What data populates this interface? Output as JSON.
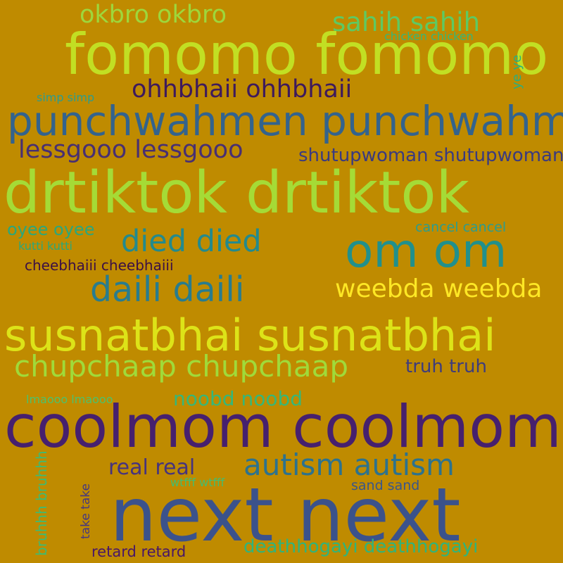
{
  "background": "#bf8b00",
  "words": [
    {
      "text": "okbro okbro",
      "color": "#9ed73b"
    },
    {
      "text": "sahih sahih",
      "color": "#5ec962"
    },
    {
      "text": "chicken chicken",
      "color": "#35b779"
    },
    {
      "text": "fomomo fomomo",
      "color": "#c2df23"
    },
    {
      "text": "ye ye",
      "color": "#29af7f"
    },
    {
      "text": "simp simp",
      "color": "#2a9d8f"
    },
    {
      "text": "ohhbhaii ohhbhaii",
      "color": "#3e1a5c"
    },
    {
      "text": "punchwahmen punchwahmen",
      "color": "#33638d"
    },
    {
      "text": "lessgooo lessgooo",
      "color": "#482f72"
    },
    {
      "text": "shutupwoman shutupwoman",
      "color": "#3a3a80"
    },
    {
      "text": "drtiktok drtiktok",
      "color": "#a5db36"
    },
    {
      "text": "oyee oyee",
      "color": "#2aa77c"
    },
    {
      "text": "died died",
      "color": "#238a8d"
    },
    {
      "text": "om om",
      "color": "#21908c"
    },
    {
      "text": "cancel cancel",
      "color": "#2a9d8f"
    },
    {
      "text": "kutti kutti",
      "color": "#2aa77c"
    },
    {
      "text": "cheebhaiii cheebhaiii",
      "color": "#3b0f45"
    },
    {
      "text": "daili daili",
      "color": "#287c8e"
    },
    {
      "text": "weebda weebda",
      "color": "#fde725"
    },
    {
      "text": "susnatbhai susnatbhai",
      "color": "#dde318"
    },
    {
      "text": "chupchaap chupchaap",
      "color": "#a0da39"
    },
    {
      "text": "truh truh",
      "color": "#3e3c7d"
    },
    {
      "text": "lmaooo lmaooo",
      "color": "#4cc26c"
    },
    {
      "text": "noobd noobd",
      "color": "#35b779"
    },
    {
      "text": "coolmom coolmom",
      "color": "#46206e"
    },
    {
      "text": "real real",
      "color": "#46337e"
    },
    {
      "text": "autism autism",
      "color": "#2c728e"
    },
    {
      "text": "wtfff wtfff",
      "color": "#42be71"
    },
    {
      "text": "sand sand",
      "color": "#39568c"
    },
    {
      "text": "bruhhh bruhhh",
      "color": "#3cbb75"
    },
    {
      "text": "take take",
      "color": "#453781"
    },
    {
      "text": "next next",
      "color": "#3b528b"
    },
    {
      "text": "retard retard",
      "color": "#481668"
    },
    {
      "text": "deathhogayi deathhogayi",
      "color": "#2fb47c"
    }
  ]
}
